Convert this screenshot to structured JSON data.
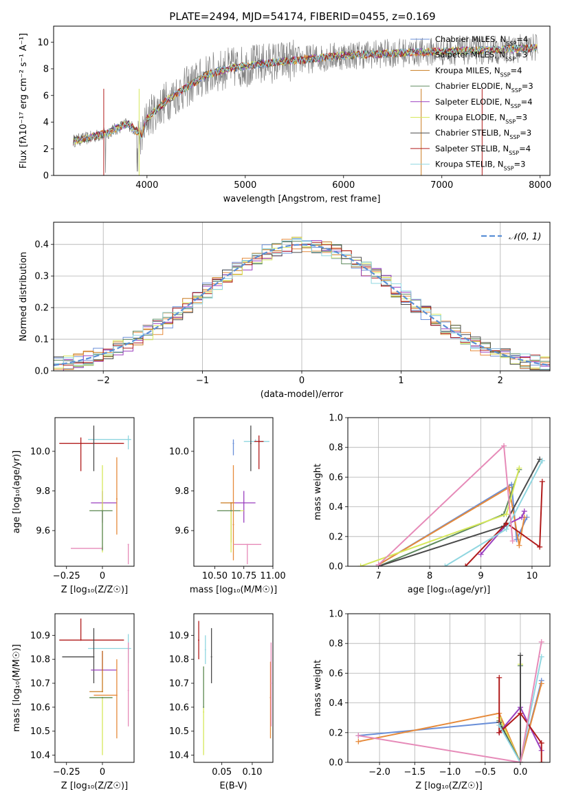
{
  "figure": {
    "title": "PLATE=2494, MJD=54174, FIBERID=0455, z=0.169"
  },
  "models": [
    {
      "label": "Chabrier MILES, N",
      "sub": "SSP",
      "val": "=4",
      "color": "#6a8fd8"
    },
    {
      "label": "Salpeter MILES, N",
      "sub": "SSP",
      "val": "=3",
      "color": "#e68a3a"
    },
    {
      "label": "Kroupa MILES, N",
      "sub": "SSP",
      "val": "=4",
      "color": "#c97b1f"
    },
    {
      "label": "Chabrier ELODIE, N",
      "sub": "SSP",
      "val": "=3",
      "color": "#5f8a5f"
    },
    {
      "label": "Salpeter ELODIE, N",
      "sub": "SSP",
      "val": "=4",
      "color": "#9a3fbf"
    },
    {
      "label": "Kroupa ELODIE, N",
      "sub": "SSP",
      "val": "=3",
      "color": "#d6e85a"
    },
    {
      "label": "Chabrier STELIB, N",
      "sub": "SSP",
      "val": "=3",
      "color": "#4a4a4a"
    },
    {
      "label": "Salpeter STELIB, N",
      "sub": "SSP",
      "val": "=4",
      "color": "#b01a1a"
    },
    {
      "label": "Kroupa STELIB, N",
      "sub": "SSP",
      "val": "=3",
      "color": "#8fd6e0"
    }
  ],
  "chart_data": [
    {
      "id": "spectrum",
      "type": "line",
      "xlabel": "wavelength [Angstrom, rest frame]",
      "ylabel": "Flux [fλ10⁻¹⁷ erg cm⁻² s⁻¹ A⁻¹]",
      "xlim": [
        3050,
        8100
      ],
      "ylim": [
        0,
        11.2
      ],
      "xticks": [
        4000,
        5000,
        6000,
        7000,
        8000
      ],
      "yticks": [
        0,
        2,
        4,
        6,
        8,
        10
      ],
      "data_color": "#808080",
      "data_continuum": {
        "x": [
          3250,
          3400,
          3600,
          3800,
          3950,
          4000,
          4200,
          4400,
          4600,
          4800,
          5000,
          5300,
          5600,
          6000,
          6300,
          6600,
          7000,
          7400,
          7800,
          8000
        ],
        "y": [
          2.6,
          2.8,
          3.2,
          3.9,
          3.0,
          4.3,
          5.6,
          6.6,
          7.5,
          8.0,
          8.2,
          8.5,
          8.7,
          9.0,
          9.1,
          9.2,
          9.3,
          9.4,
          9.5,
          9.6
        ]
      },
      "legend_loc": "upper right",
      "grid": false
    },
    {
      "id": "residuals",
      "type": "histogram",
      "xlabel": "(data-model)/error",
      "ylabel": "Normed distribution",
      "xlim": [
        -2.5,
        2.5
      ],
      "ylim": [
        0,
        0.47
      ],
      "xticks": [
        -2,
        -1,
        0,
        1,
        2
      ],
      "yticks": [
        0.0,
        0.1,
        0.2,
        0.3,
        0.4
      ],
      "legend": "𝒩(0, 1)",
      "reference_color": "#5a8fd6",
      "grid": true
    },
    {
      "id": "age_vs_Z",
      "type": "errorbar",
      "xlabel": "Z [log₁₀(Z/Z☉)]",
      "ylabel": "age  [log₁₀(age/yr)]",
      "xlim": [
        -0.33,
        0.22
      ],
      "ylim": [
        9.42,
        10.17
      ],
      "xticks": [
        -0.25,
        0.0
      ],
      "yticks": [
        9.6,
        9.8,
        10.0
      ],
      "points": [
        {
          "x": 0.0,
          "xerr": [
            0.22,
            0.0
          ],
          "y": 9.51,
          "yerr": [
            0.0,
            0.01
          ],
          "color": "#e68ab8"
        },
        {
          "x": 0.18,
          "xerr": [
            0.28,
            0.02
          ],
          "y": 10.06,
          "yerr": [
            0.05,
            0.02
          ],
          "color": "#8fd6e0"
        },
        {
          "x": -0.15,
          "xerr": [
            0.15,
            0.3
          ],
          "y": 10.04,
          "yerr": [
            0.14,
            0.03
          ],
          "color": "#b01a1a"
        },
        {
          "x": -0.06,
          "xerr": [
            0.0,
            0.0
          ],
          "y": 10.04,
          "yerr": [
            0.14,
            0.09
          ],
          "color": "#4a4a4a"
        },
        {
          "x": 0.0,
          "xerr": [
            0.08,
            0.1
          ],
          "y": 9.74,
          "yerr": [
            0.1,
            0.06
          ],
          "color": "#9a3fbf"
        },
        {
          "x": 0.0,
          "xerr": [
            0.09,
            0.07
          ],
          "y": 9.7,
          "yerr": [
            0.21,
            0.23
          ],
          "color": "#d6e85a"
        },
        {
          "x": 0.0,
          "xerr": [
            0.09,
            0.07
          ],
          "y": 9.7,
          "yerr": [
            0.2,
            0.0
          ],
          "color": "#5f8a5f"
        },
        {
          "x": 0.1,
          "xerr": [
            0.0,
            0.0
          ],
          "y": 9.76,
          "yerr": [
            0.18,
            0.21
          ],
          "color": "#e68a3a"
        },
        {
          "x": 0.18,
          "xerr": [
            0.0,
            0.0
          ],
          "y": 9.53,
          "yerr": [
            0.1,
            0.0
          ],
          "color": "#e68ab8"
        }
      ]
    },
    {
      "id": "age_vs_mass",
      "type": "errorbar",
      "xlabel": "mass [log₁₀(M/M☉)]",
      "ylabel": "",
      "xlim": [
        10.32,
        11.0
      ],
      "ylim": [
        9.42,
        10.17
      ],
      "xticks": [
        10.5,
        10.75,
        11.0
      ],
      "xticklabels": [
        "10.50",
        "10.75",
        "11.00"
      ],
      "yticks": [
        9.6,
        9.8,
        10.0
      ],
      "points": [
        {
          "x": 10.85,
          "xerr": [
            0.1,
            0.12
          ],
          "y": 10.05,
          "yerr": [
            0.0,
            0.01
          ],
          "color": "#8fd6e0"
        },
        {
          "x": 10.88,
          "xerr": [
            0.04,
            0.04
          ],
          "y": 10.05,
          "yerr": [
            0.14,
            0.03
          ],
          "color": "#b01a1a"
        },
        {
          "x": 10.81,
          "xerr": [
            0.0,
            0.0
          ],
          "y": 10.04,
          "yerr": [
            0.14,
            0.09
          ],
          "color": "#4a4a4a"
        },
        {
          "x": 10.66,
          "xerr": [
            0.0,
            0.0
          ],
          "y": 10.04,
          "yerr": [
            0.06,
            0.02
          ],
          "color": "#6a8fd8"
        },
        {
          "x": 10.75,
          "xerr": [
            0.11,
            0.1
          ],
          "y": 9.74,
          "yerr": [
            0.1,
            0.06
          ],
          "color": "#9a3fbf"
        },
        {
          "x": 10.64,
          "xerr": [
            0.09,
            0.03
          ],
          "y": 9.74,
          "yerr": [
            0.2,
            0.0
          ],
          "color": "#c97b1f"
        },
        {
          "x": 10.64,
          "xerr": [
            0.11,
            0.11
          ],
          "y": 9.7,
          "yerr": [
            0.21,
            0.0
          ],
          "color": "#d6e85a"
        },
        {
          "x": 10.64,
          "xerr": [
            0.12,
            0.08
          ],
          "y": 9.7,
          "yerr": [
            0.0,
            0.0
          ],
          "color": "#5f8a5f"
        },
        {
          "x": 10.66,
          "xerr": [
            0.0,
            0.0
          ],
          "y": 9.63,
          "yerr": [
            0.18,
            0.3
          ],
          "color": "#e68a3a"
        },
        {
          "x": 10.78,
          "xerr": [
            0.12,
            0.12
          ],
          "y": 9.53,
          "yerr": [
            0.1,
            0.0
          ],
          "color": "#e68ab8"
        }
      ]
    },
    {
      "id": "weight_vs_age",
      "type": "line",
      "xlabel": "age  [log₁₀(age/yr)]",
      "ylabel": "mass weight",
      "xlim": [
        6.4,
        10.35
      ],
      "ylim": [
        0,
        1.0
      ],
      "xticks": [
        7,
        8,
        9,
        10
      ],
      "yticks": [
        0.0,
        0.2,
        0.4,
        0.6,
        0.8,
        1.0
      ],
      "grid": true,
      "series": [
        {
          "color": "#6a8fd8",
          "x": [
            7.0,
            9.6,
            9.7,
            9.9
          ],
          "y": [
            0.01,
            0.55,
            0.18,
            0.33
          ]
        },
        {
          "color": "#e68a3a",
          "x": [
            7.0,
            9.55,
            9.75,
            9.85
          ],
          "y": [
            0.01,
            0.53,
            0.14,
            0.33
          ]
        },
        {
          "color": "#5f8a5f",
          "x": [
            7.0,
            9.45,
            9.75
          ],
          "y": [
            0.0,
            0.35,
            0.65
          ]
        },
        {
          "color": "#d6e85a",
          "x": [
            6.65,
            9.5,
            9.75
          ],
          "y": [
            0.0,
            0.35,
            0.66
          ]
        },
        {
          "color": "#9a3fbf",
          "x": [
            9.0,
            9.5,
            9.8,
            9.85
          ],
          "y": [
            0.08,
            0.28,
            0.33,
            0.37
          ]
        },
        {
          "color": "#4a4a4a",
          "x": [
            7.0,
            9.45,
            10.15
          ],
          "y": [
            0.0,
            0.27,
            0.72
          ]
        },
        {
          "color": "#b01a1a",
          "x": [
            8.7,
            9.5,
            10.15,
            10.2
          ],
          "y": [
            0.0,
            0.29,
            0.13,
            0.57
          ]
        },
        {
          "color": "#8fd6e0",
          "x": [
            8.3,
            9.5,
            10.2
          ],
          "y": [
            0.0,
            0.25,
            0.71
          ]
        },
        {
          "color": "#e68ab8",
          "x": [
            7.0,
            9.45,
            9.62
          ],
          "y": [
            0.01,
            0.81,
            0.17
          ]
        }
      ]
    },
    {
      "id": "mass_vs_Z",
      "type": "errorbar",
      "xlabel": "Z [log₁₀(Z/Z☉)]",
      "ylabel": "mass [log₁₀(M/M☉)]",
      "xlim": [
        -0.33,
        0.22
      ],
      "ylim": [
        10.37,
        10.99
      ],
      "xticks": [
        -0.25,
        0.0
      ],
      "yticks": [
        10.4,
        10.5,
        10.6,
        10.7,
        10.8,
        10.9
      ],
      "points": [
        {
          "x": -0.15,
          "xerr": [
            0.15,
            0.3
          ],
          "y": 10.88,
          "yerr": [
            0.0,
            0.09
          ],
          "color": "#b01a1a"
        },
        {
          "x": 0.18,
          "xerr": [
            0.28,
            0.02
          ],
          "y": 10.845,
          "yerr": [
            0.06,
            0.06
          ],
          "color": "#8fd6e0"
        },
        {
          "x": -0.06,
          "xerr": [
            0.22,
            0.0
          ],
          "y": 10.81,
          "yerr": [
            0.11,
            0.12
          ],
          "color": "#4a4a4a"
        },
        {
          "x": 0.0,
          "xerr": [
            0.08,
            0.1
          ],
          "y": 10.755,
          "yerr": [
            0.0,
            0.08
          ],
          "color": "#9a3fbf"
        },
        {
          "x": 0.0,
          "xerr": [
            0.09,
            0.0
          ],
          "y": 10.665,
          "yerr": [
            0.0,
            0.17
          ],
          "color": "#c97b1f"
        },
        {
          "x": 0.1,
          "xerr": [
            0.16,
            0.0
          ],
          "y": 10.65,
          "yerr": [
            0.18,
            0.15
          ],
          "color": "#e68a3a"
        },
        {
          "x": 0.0,
          "xerr": [
            0.09,
            0.07
          ],
          "y": 10.64,
          "yerr": [
            0.24,
            0.0
          ],
          "color": "#d6e85a"
        },
        {
          "x": 0.0,
          "xerr": [
            0.09,
            0.07
          ],
          "y": 10.64,
          "yerr": [
            0.0,
            0.0
          ],
          "color": "#5f8a5f"
        },
        {
          "x": 0.18,
          "xerr": [
            0.0,
            0.0
          ],
          "y": 10.67,
          "yerr": [
            0.15,
            0.2
          ],
          "color": "#e68ab8"
        }
      ]
    },
    {
      "id": "mass_vs_ebv",
      "type": "errorbar",
      "xlabel": "E(B-V)",
      "ylabel": "",
      "xlim": [
        0.004,
        0.134
      ],
      "ylim": [
        10.37,
        10.99
      ],
      "xticks": [
        0.05,
        0.1
      ],
      "xticklabels": [
        "0.05",
        "0.10"
      ],
      "yticks": [
        10.4,
        10.5,
        10.6,
        10.7,
        10.8,
        10.9
      ],
      "points": [
        {
          "x": 0.012,
          "xerr": [
            0.0,
            0.0
          ],
          "y": 10.88,
          "yerr": [
            0.08,
            0.08
          ],
          "color": "#b01a1a"
        },
        {
          "x": 0.023,
          "xerr": [
            0.0,
            0.0
          ],
          "y": 10.84,
          "yerr": [
            0.06,
            0.06
          ],
          "color": "#8fd6e0"
        },
        {
          "x": 0.033,
          "xerr": [
            0.0,
            0.0
          ],
          "y": 10.81,
          "yerr": [
            0.11,
            0.12
          ],
          "color": "#4a4a4a"
        },
        {
          "x": 0.02,
          "xerr": [
            0.0,
            0.0
          ],
          "y": 10.58,
          "yerr": [
            0.18,
            0.19
          ],
          "color": "#d6e85a"
        },
        {
          "x": 0.02,
          "xerr": [
            0.0,
            0.0
          ],
          "y": 10.6,
          "yerr": [
            0.0,
            0.17
          ],
          "color": "#5f8a5f"
        },
        {
          "x": 0.13,
          "xerr": [
            0.0,
            0.0
          ],
          "y": 10.64,
          "yerr": [
            0.17,
            0.15
          ],
          "color": "#e68a3a"
        },
        {
          "x": 0.131,
          "xerr": [
            0.0,
            0.0
          ],
          "y": 10.7,
          "yerr": [
            0.18,
            0.17
          ],
          "color": "#e68ab8"
        }
      ]
    },
    {
      "id": "weight_vs_Z",
      "type": "line",
      "xlabel": "Z [log₁₀(Z/Z☉)]",
      "ylabel": "mass weight",
      "xlim": [
        -2.45,
        0.42
      ],
      "ylim": [
        0,
        1.0
      ],
      "xticks": [
        -2.0,
        -1.5,
        -1.0,
        -0.5,
        0.0
      ],
      "xticklabels": [
        "−2.0",
        "−1.5",
        "−1.0",
        "−0.5",
        "0.0"
      ],
      "yticks": [
        0.0,
        0.2,
        0.4,
        0.6,
        0.8,
        1.0
      ],
      "grid": true,
      "series": [
        {
          "color": "#6a8fd8",
          "x": [
            -2.3,
            -0.3,
            0.0,
            0.3
          ],
          "y": [
            0.18,
            0.27,
            0.0,
            0.55
          ]
        },
        {
          "color": "#e68a3a",
          "x": [
            -2.3,
            -0.3,
            0.0,
            0.3
          ],
          "y": [
            0.14,
            0.33,
            0.0,
            0.53
          ]
        },
        {
          "color": "#5f8a5f",
          "x": [
            -0.3,
            0.0,
            0.0
          ],
          "y": [
            0.28,
            0.0,
            0.65
          ]
        },
        {
          "color": "#d6e85a",
          "x": [
            -0.3,
            0.0,
            0.0
          ],
          "y": [
            0.3,
            0.0,
            0.66
          ]
        },
        {
          "color": "#9a3fbf",
          "x": [
            -0.3,
            0.0,
            0.3
          ],
          "y": [
            0.2,
            0.37,
            0.08
          ]
        },
        {
          "color": "#4a4a4a",
          "x": [
            -0.3,
            0.0,
            0.0
          ],
          "y": [
            0.27,
            0.0,
            0.72
          ]
        },
        {
          "color": "#b01a1a",
          "x": [
            -0.3,
            -0.3,
            0.0,
            0.3,
            0.3
          ],
          "y": [
            0.57,
            0.2,
            0.33,
            0.13,
            0.0
          ]
        },
        {
          "color": "#8fd6e0",
          "x": [
            -0.3,
            0.0,
            0.3
          ],
          "y": [
            0.25,
            0.0,
            0.71
          ]
        },
        {
          "color": "#e68ab8",
          "x": [
            -2.3,
            0.0,
            0.3
          ],
          "y": [
            0.18,
            0.0,
            0.81
          ]
        }
      ]
    }
  ]
}
